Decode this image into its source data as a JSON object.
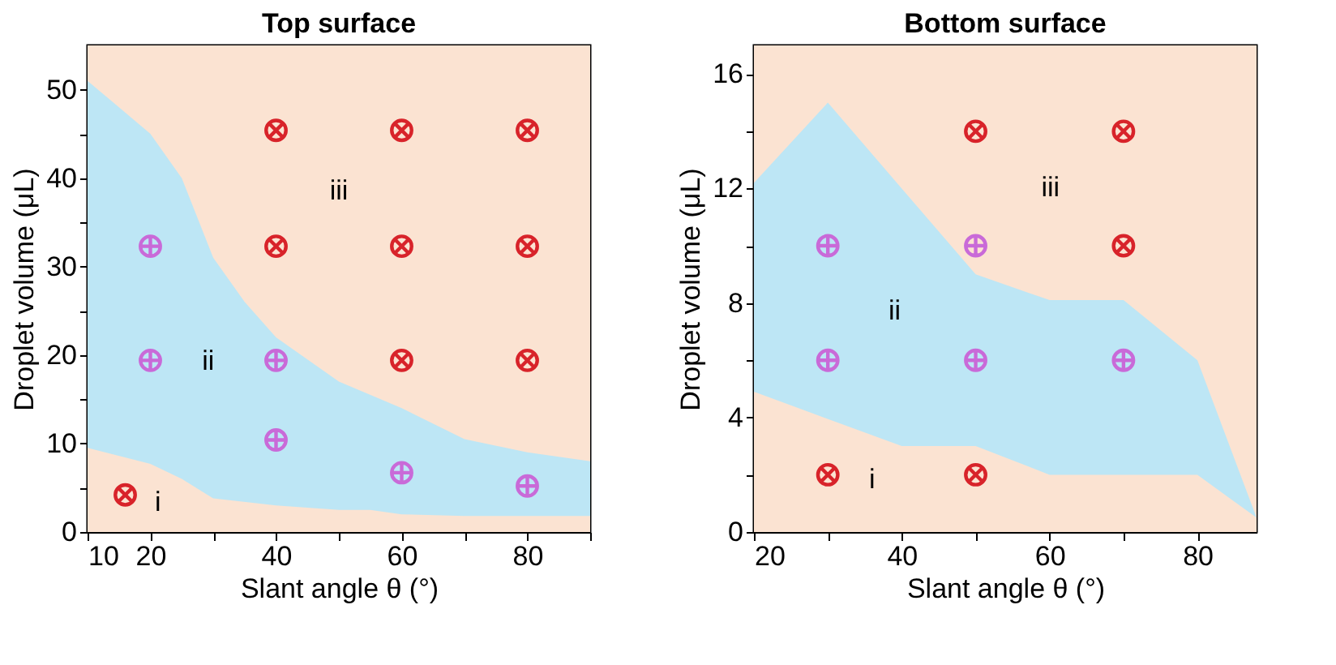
{
  "chart_data": [
    {
      "type": "area",
      "title": "Top surface",
      "xlabel": "Slant angle θ (°)",
      "ylabel": "Droplet volume (μL)",
      "xlim": [
        10,
        90
      ],
      "ylim": [
        0,
        55
      ],
      "xticks": [
        10,
        20,
        {
          "value": 30,
          "label": null
        },
        40,
        {
          "value": 50,
          "label": null
        },
        60,
        {
          "value": 70,
          "label": null
        },
        80,
        {
          "value": 90,
          "label": null
        }
      ],
      "yticks": [
        0,
        {
          "value": 5,
          "label": null
        },
        10,
        {
          "value": 15,
          "label": null
        },
        20,
        {
          "value": 25,
          "label": null
        },
        30,
        {
          "value": 35,
          "label": null
        },
        40,
        {
          "value": 45,
          "label": null
        },
        50
      ],
      "grid": false,
      "bands": [
        {
          "axis": "y",
          "from": 0,
          "to": 55,
          "color": "#fbe3d2"
        }
      ],
      "series": [
        {
          "color": "#bde6f5",
          "x": [
            10,
            15,
            20,
            25,
            30,
            35,
            40,
            50,
            60,
            70,
            80,
            90
          ],
          "values": [
            51,
            48,
            45,
            40,
            31,
            26,
            22,
            17,
            14,
            10.5,
            9,
            8
          ]
        },
        {
          "color": "#fbe3d2",
          "x": [
            10,
            20,
            25,
            30,
            40,
            50,
            55,
            60,
            70,
            90
          ],
          "values": [
            9.5,
            7.7,
            6,
            3.8,
            3,
            2.5,
            2.5,
            2,
            1.8,
            1.8
          ]
        },
        {
          "type": "scatter",
          "marker": "cross",
          "color": "#d8232a",
          "x": [
            16,
            40,
            60,
            80,
            40,
            60,
            80,
            60,
            80
          ],
          "values": [
            4.2,
            45.4,
            45.4,
            45.4,
            32.3,
            32.3,
            32.3,
            19.4,
            19.4
          ]
        },
        {
          "type": "scatter",
          "color": "#c96ad8",
          "x": [
            20,
            20,
            40,
            40,
            60,
            80
          ],
          "values": [
            32.3,
            19.4,
            19.4,
            10.4,
            6.7,
            5.2
          ]
        }
      ],
      "annotations": [
        "i",
        "ii",
        "iii"
      ]
    },
    {
      "type": "area",
      "title": "Bottom surface",
      "xlabel": "Slant angle θ (°)",
      "ylabel": "Droplet volume (μL)",
      "xlim": [
        20,
        88
      ],
      "ylim": [
        0,
        17
      ],
      "xticks": [
        20,
        {
          "value": 30,
          "label": null
        },
        40,
        {
          "value": 50,
          "label": null
        },
        60,
        {
          "value": 70,
          "label": null
        },
        80
      ],
      "yticks": [
        0,
        {
          "value": 2,
          "label": null
        },
        4,
        {
          "value": 6,
          "label": null
        },
        8,
        {
          "value": 10,
          "label": null
        },
        12,
        {
          "value": 14,
          "label": null
        },
        16
      ],
      "grid": false,
      "bands": [
        {
          "axis": "y",
          "from": 0,
          "to": 17,
          "color": "#fbe3d2"
        }
      ],
      "series": [
        {
          "color": "#bde6f5",
          "x": [
            20,
            30,
            40,
            50,
            60,
            70,
            80,
            88
          ],
          "values": [
            12.2,
            15,
            12,
            9,
            8.1,
            8.1,
            6,
            0.5
          ]
        },
        {
          "color": "#fbe3d2",
          "x": [
            20,
            40,
            50,
            60,
            80,
            88
          ],
          "values": [
            4.9,
            3,
            3,
            2,
            2,
            0.5
          ]
        },
        {
          "type": "scatter",
          "marker": "cross",
          "color": "#d8232a",
          "x": [
            50,
            70,
            70,
            30,
            50
          ],
          "values": [
            14,
            14,
            10,
            2,
            2
          ]
        },
        {
          "type": "scatter",
          "color": "#c96ad8",
          "x": [
            30,
            50,
            30,
            50,
            70
          ],
          "values": [
            10,
            10,
            6,
            6,
            6
          ]
        }
      ],
      "annotations": [
        "i",
        "ii",
        "iii"
      ]
    }
  ]
}
